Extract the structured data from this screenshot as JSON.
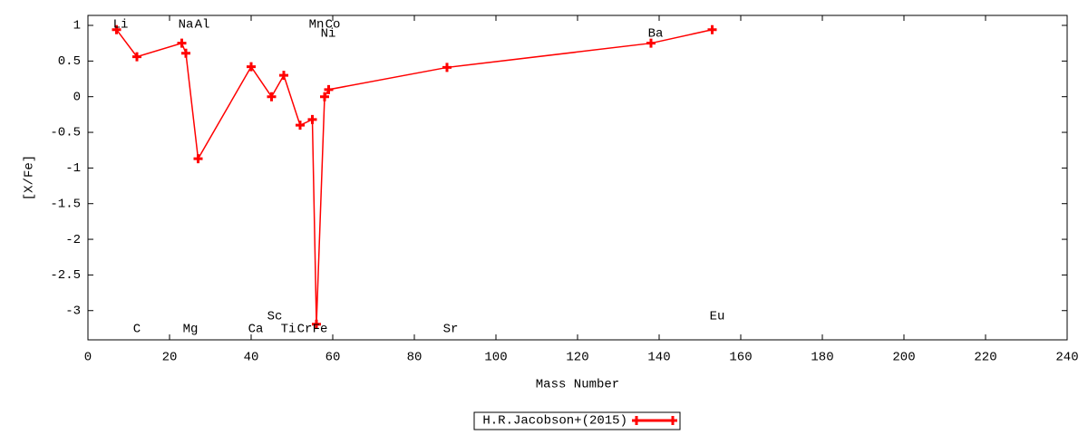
{
  "chart_data": {
    "type": "line",
    "xlabel": "Mass Number",
    "ylabel": "[X/Fe]",
    "x": [
      7,
      12,
      23,
      24,
      27,
      40,
      45,
      48,
      52,
      55,
      56,
      58,
      59,
      88,
      138,
      153
    ],
    "point_labels": [
      "Li",
      "C",
      "Na",
      "Mg",
      "Al",
      "Ca",
      "Sc",
      "Ti",
      "Cr",
      "Mn",
      "Fe",
      "Ni",
      "Co",
      "Sr",
      "Ba",
      "Eu"
    ],
    "series": [
      {
        "name": "H.R.Jacobson+(2015)",
        "color": "#ff0000",
        "values": [
          0.94,
          0.56,
          0.75,
          0.61,
          -0.87,
          0.42,
          0.0,
          0.3,
          -0.4,
          -0.32,
          -3.19,
          0.0,
          0.1,
          0.41,
          0.75,
          0.94
        ]
      }
    ],
    "xlim": [
      0,
      240
    ],
    "ylim": [
      -3.41,
      1.14
    ],
    "xticks": [
      0,
      20,
      40,
      60,
      80,
      100,
      120,
      140,
      160,
      180,
      200,
      220,
      240
    ],
    "yticks": [
      1,
      0.5,
      0,
      -0.5,
      -1,
      -1.5,
      -2,
      -2.5,
      -3
    ],
    "grid": false,
    "legend": "bottom"
  }
}
